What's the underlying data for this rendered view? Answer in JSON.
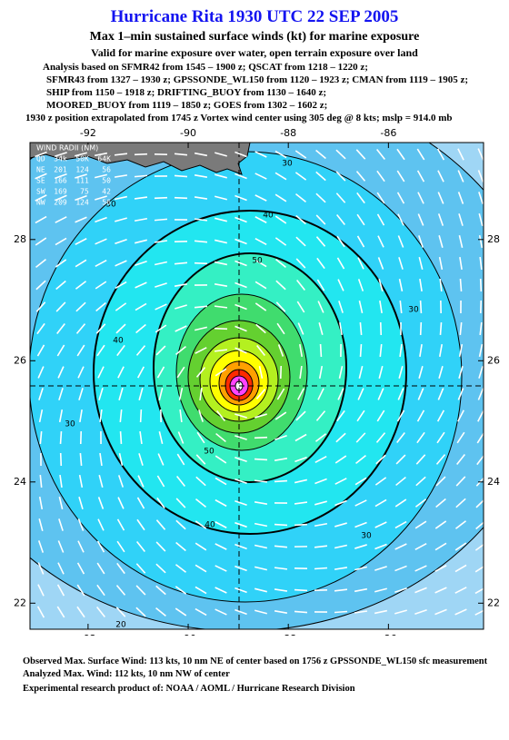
{
  "header": {
    "title": "Hurricane Rita 1930 UTC 22 SEP 2005",
    "subtitle": "Max 1–min sustained surface winds (kt) for marine exposure",
    "note": "Valid for marine exposure over water, open terrain exposure over land",
    "analysis": [
      "Analysis based on  SFMR42 from 1545 – 1900 z;  QSCAT from 1218 – 1220 z;",
      "SFMR43 from 1327 – 1930 z;  GPSSONDE_WL150 from 1120 – 1923 z;  CMAN from 1119 – 1905 z;",
      "SHIP from 1150 – 1918 z;  DRIFTING_BUOY from 1130 – 1640 z;",
      "MOORED_BUOY from 1119 – 1850 z;  GOES from 1302 – 1602 z;"
    ],
    "position": "1930 z position extrapolated from 1745 z Vortex wind center using 305 deg @ 8 kts; mslp = 914.0 mb"
  },
  "map": {
    "xlim": [
      -93.16,
      -84.1
    ],
    "ylim": [
      21.57,
      29.6
    ],
    "xticks": [
      -92,
      -90,
      -88,
      -86
    ],
    "yticks": [
      22,
      24,
      26,
      28
    ],
    "wind_radii": {
      "title": "WIND RADII (NM)",
      "rows": [
        "QD  34k  50K  64K",
        "NE  201  124   56",
        "SE  166  111   50",
        "SW  169   75   42",
        "NW  209  124   56"
      ]
    },
    "contour_labels": [
      30,
      40,
      50,
      30,
      40,
      30,
      50,
      40,
      30,
      30,
      20
    ]
  },
  "footer": {
    "observed": "Observed Max. Surface Wind: 113 kts, 10 nm NE of center based on 1756 z GPSSONDE_WL150 sfc measurement",
    "analyzed": "Analyzed Max. Wind: 112 kts, 10 nm NW of center",
    "credit": "Experimental research product of:  NOAA / AOML / Hurricane Research Division"
  }
}
